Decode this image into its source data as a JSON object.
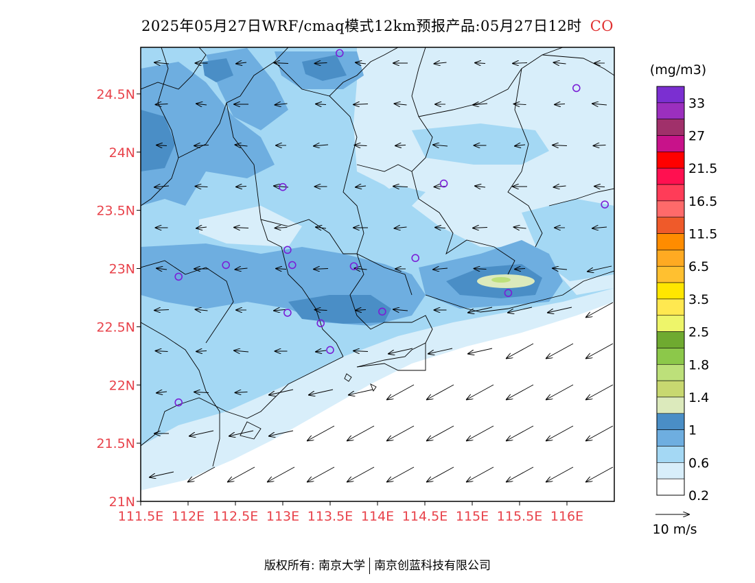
{
  "title": {
    "main": "2025年05月27日WRF/cmaq模式12km预报产品:05月27日12时",
    "species": "CO"
  },
  "axes": {
    "lon_labels": [
      "111.5E",
      "112E",
      "112.5E",
      "113E",
      "113.5E",
      "114E",
      "114.5E",
      "115E",
      "115.5E",
      "116E"
    ],
    "lat_labels": [
      "24.5N",
      "24N",
      "23.5N",
      "23N",
      "22.5N",
      "22N",
      "21.5N",
      "21N"
    ],
    "lon_range": [
      111.5,
      116.5
    ],
    "lat_range": [
      21.0,
      24.9
    ]
  },
  "colorbar": {
    "unit": "(mg/m3)",
    "labels": [
      "33",
      "27",
      "21.5",
      "16.5",
      "11.5",
      "6.5",
      "3.5",
      "2.5",
      "1.8",
      "1.4",
      "1",
      "0.6",
      "0.2"
    ],
    "colors": [
      "#7b2fd1",
      "#9b2fbe",
      "#a0306a",
      "#c8128a",
      "#ff0000",
      "#ff1050",
      "#ff3c58",
      "#ff6a6a",
      "#ef5a2a",
      "#ff8c00",
      "#ffaa22",
      "#ffc030",
      "#ffe600",
      "#ffe850",
      "#eef56a",
      "#6faa30",
      "#8cc84a",
      "#bde07a",
      "#c8d870",
      "#dceabc",
      "#4a8ec6",
      "#6eaee0",
      "#a4d8f4",
      "#d8eefa",
      "#ffffff"
    ]
  },
  "wind_legend": {
    "label": "10 m/s"
  },
  "colors": {
    "land_base": "#a4d8f4",
    "level_0_2": "#d8eefa",
    "level_0_6": "#6eaee0",
    "level_1": "#4a8ec6",
    "level_1_4": "#dceabc",
    "level_1_8": "#bde07a",
    "station_marker": "#7a1fd6",
    "tick_label": "#e8424a"
  },
  "stations": [
    {
      "lon": 113.6,
      "lat": 24.85
    },
    {
      "lon": 116.1,
      "lat": 24.55
    },
    {
      "lon": 113.0,
      "lat": 23.7
    },
    {
      "lon": 114.7,
      "lat": 23.73
    },
    {
      "lon": 116.4,
      "lat": 23.55
    },
    {
      "lon": 112.4,
      "lat": 23.03
    },
    {
      "lon": 113.05,
      "lat": 23.16
    },
    {
      "lon": 113.1,
      "lat": 23.03
    },
    {
      "lon": 113.75,
      "lat": 23.02
    },
    {
      "lon": 114.4,
      "lat": 23.09
    },
    {
      "lon": 111.9,
      "lat": 22.93
    },
    {
      "lon": 115.38,
      "lat": 22.79
    },
    {
      "lon": 113.05,
      "lat": 22.62
    },
    {
      "lon": 113.4,
      "lat": 22.53
    },
    {
      "lon": 114.05,
      "lat": 22.63
    },
    {
      "lon": 113.5,
      "lat": 22.3
    },
    {
      "lon": 111.9,
      "lat": 21.85
    }
  ],
  "footer": {
    "left": "版权所有: 南京大学",
    "right": "南京创蓝科技有限公司"
  }
}
